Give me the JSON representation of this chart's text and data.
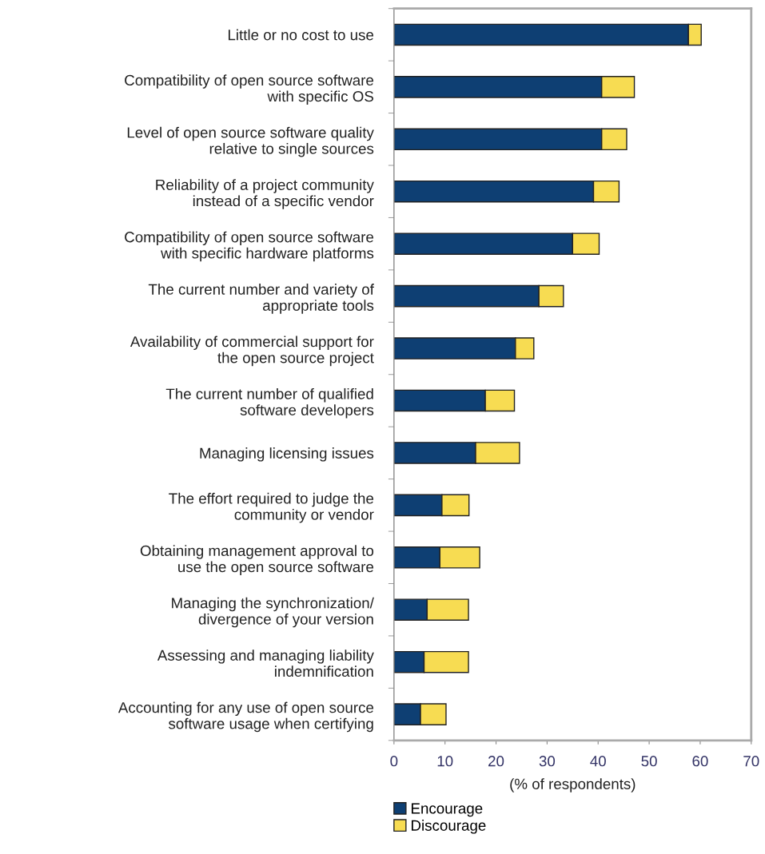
{
  "chart_data": {
    "type": "bar",
    "orientation": "horizontal",
    "stacked": true,
    "categories": [
      "Little or no cost to use",
      "Compatibility of open source software\nwith specific OS",
      "Level of open source software quality\nrelative to single sources",
      "Reliability of a project community\ninstead of a specific vendor",
      "Compatibility of open source software\nwith specific hardware platforms",
      "The current number and variety of\nappropriate tools",
      "Availability of commercial support for\nthe open source project",
      "The current number of qualified\nsoftware developers",
      "Managing licensing issues",
      "The effort required to judge the\ncommunity or vendor",
      "Obtaining management approval to\nuse the open source software",
      "Managing the synchronization/\ndivergence of your version",
      "Assessing and managing liability\nindemnification",
      "Accounting for any use of open source\nsoftware usage when certifying"
    ],
    "series": [
      {
        "name": "Encourage",
        "color": "#0e3f73",
        "values": [
          57.7,
          40.7,
          40.7,
          39.1,
          35.0,
          28.4,
          23.8,
          17.9,
          16.0,
          9.4,
          9.0,
          6.5,
          5.9,
          5.2
        ]
      },
      {
        "name": "Discourage",
        "color": "#f7dc52",
        "values": [
          2.5,
          6.4,
          4.9,
          5.0,
          5.2,
          4.8,
          3.6,
          5.7,
          8.6,
          5.3,
          7.8,
          8.1,
          8.7,
          5.0
        ]
      }
    ],
    "xlabel": "(% of respondents)",
    "xlim": [
      0,
      70
    ],
    "xticks": [
      0,
      10,
      20,
      30,
      40,
      50,
      60,
      70
    ],
    "grid": false,
    "legend": "bottom"
  }
}
